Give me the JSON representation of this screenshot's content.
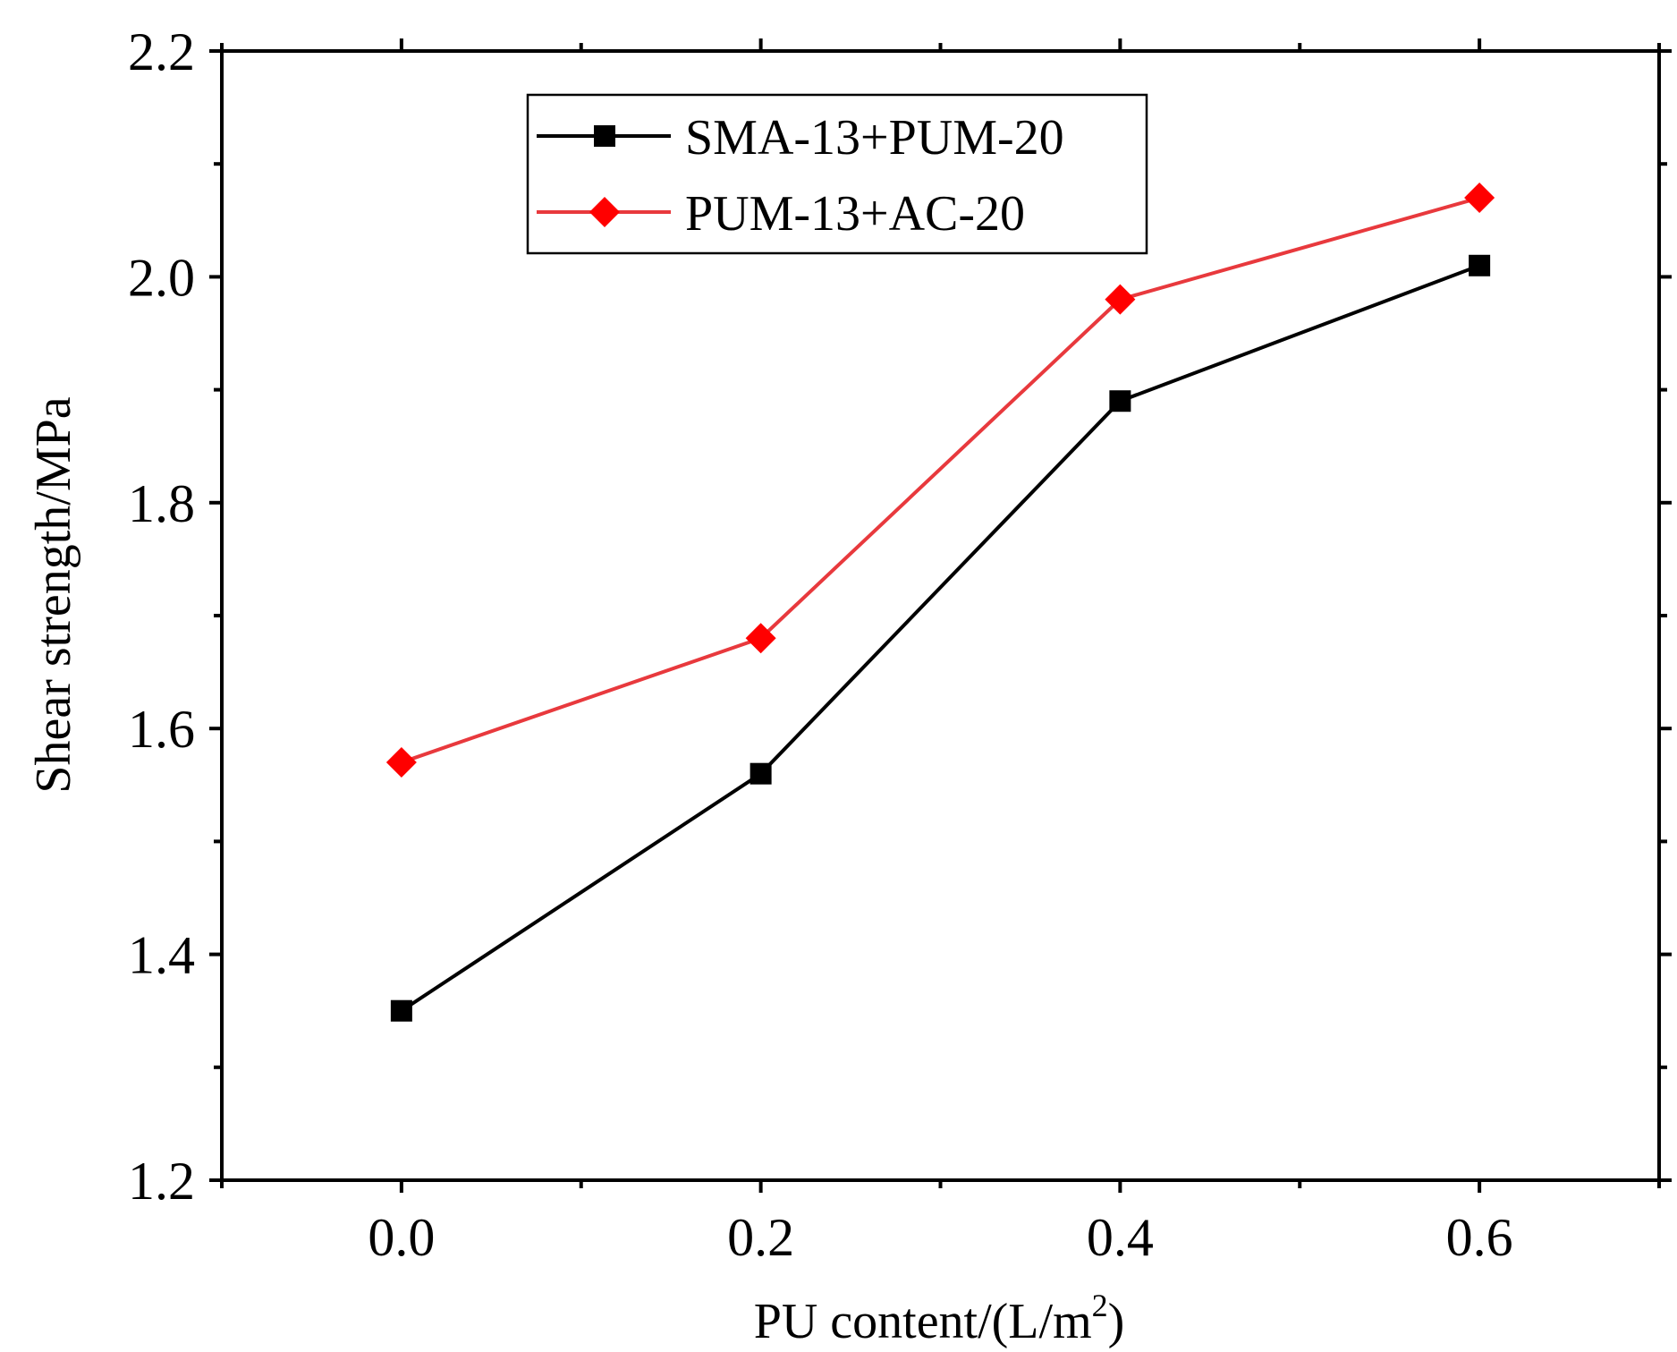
{
  "chart_data": {
    "type": "line",
    "title": "",
    "xlabel": "PU content/(L/m",
    "xlabel_superscript": "2",
    "xlabel_suffix": ")",
    "ylabel": "Shear strength/MPa",
    "x": [
      0.0,
      0.2,
      0.4,
      0.6
    ],
    "xlim": [
      -0.1,
      0.7
    ],
    "ylim": [
      1.2,
      2.2
    ],
    "xticks": [
      0.0,
      0.2,
      0.4,
      0.6
    ],
    "xtick_labels": [
      "0.0",
      "0.2",
      "0.4",
      "0.6"
    ],
    "yticks": [
      1.2,
      1.4,
      1.6,
      1.8,
      2.0,
      2.2
    ],
    "ytick_labels": [
      "1.2",
      "1.4",
      "1.6",
      "1.8",
      "2.0",
      "2.2"
    ],
    "grid": false,
    "legend_position": "top-left",
    "series": [
      {
        "name": "SMA-13+PUM-20",
        "values": [
          1.35,
          1.56,
          1.89,
          2.01
        ],
        "color": "#000000",
        "marker": "square"
      },
      {
        "name": "PUM-13+AC-20",
        "values": [
          1.57,
          1.68,
          1.98,
          2.07
        ],
        "color": "#ff0000",
        "line_color": "#e8393d",
        "marker": "diamond"
      }
    ]
  }
}
